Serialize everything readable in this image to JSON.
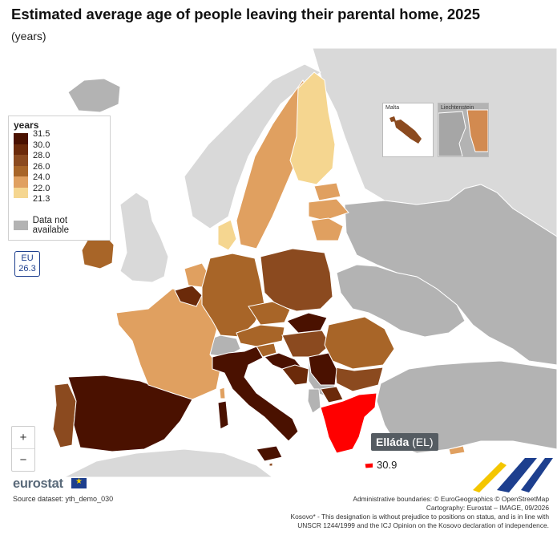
{
  "header": {
    "title": "Estimated average age of people leaving their parental home, 2025",
    "subtitle": "(years)"
  },
  "legend": {
    "title": "years",
    "items": [
      {
        "label": "31.5",
        "color": "#4a1100"
      },
      {
        "label": "30.0",
        "color": "#6b2a0a"
      },
      {
        "label": "28.0",
        "color": "#8b4a1f"
      },
      {
        "label": "26.0",
        "color": "#a86528"
      },
      {
        "label": "24.0",
        "color": "#e0a060"
      },
      {
        "label": "22.0",
        "color": "#f5d690"
      },
      {
        "label": "21.3",
        "color": "#ffffff"
      }
    ],
    "na_label": "Data not available",
    "na_color": "#b3b3b3"
  },
  "eu_badge": {
    "label": "EU",
    "value": "26.3"
  },
  "zoom": {
    "in_label": "+",
    "out_label": "−"
  },
  "insets": [
    {
      "name": "Malta"
    },
    {
      "name": "Liechtenstein"
    }
  ],
  "tooltip": {
    "country": "Elláda",
    "code": "(EL)",
    "value": "30.9"
  },
  "selected_color": "#ff0000",
  "footer": {
    "logo": "eurostat",
    "source": "Source dataset: yth_demo_030",
    "credits": [
      "Administrative boundaries: © EuroGeographics © OpenStreetMap",
      "Cartography: Eurostat – IMAGE, 09/2026",
      "Kosovo* - This designation is without prejudice to positions on status, and is in line with",
      "UNSCR 1244/1999 and the ICJ Opinion on the Kosovo declaration of independence."
    ]
  }
}
